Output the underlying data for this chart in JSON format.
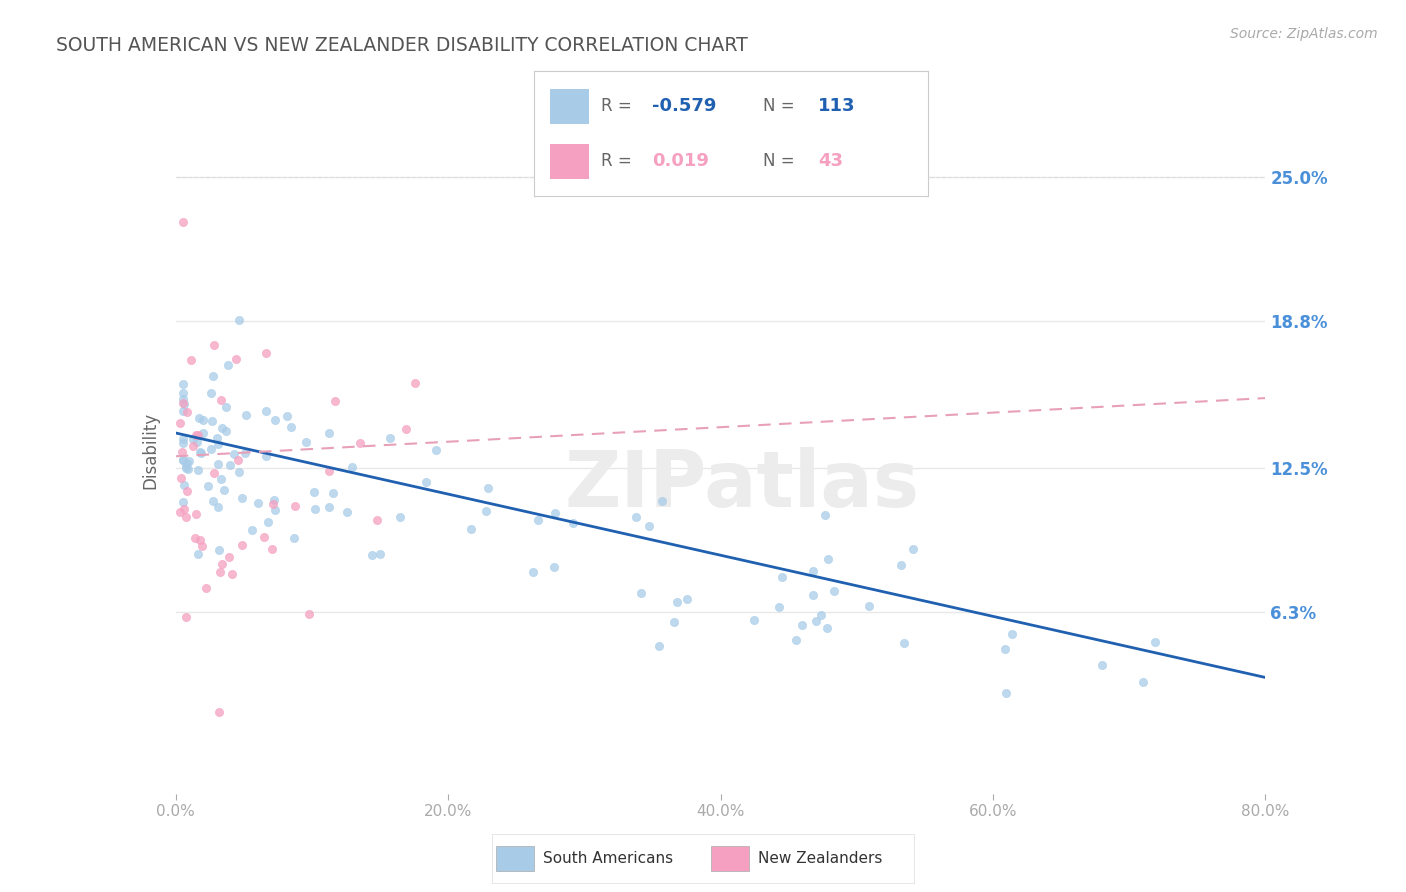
{
  "title": "SOUTH AMERICAN VS NEW ZEALANDER DISABILITY CORRELATION CHART",
  "source_text": "Source: ZipAtlas.com",
  "watermark": "ZIPatlas",
  "ylabel": "Disability",
  "x_min": 0.0,
  "x_max": 80.0,
  "y_min": 0.0,
  "y_max": 27.0,
  "y_ticks": [
    6.3,
    12.5,
    18.8,
    25.0
  ],
  "y_tick_labels": [
    "6.3%",
    "12.5%",
    "18.8%",
    "25.0%"
  ],
  "x_tick_labels": [
    "0.0%",
    "20.0%",
    "40.0%",
    "60.0%",
    "80.0%"
  ],
  "x_ticks": [
    0,
    20,
    40,
    60,
    80
  ],
  "blue_R": -0.579,
  "blue_N": 113,
  "pink_R": 0.019,
  "pink_N": 43,
  "blue_color": "#a8cce8",
  "pink_color": "#f5a0c0",
  "blue_line_color": "#2060b0",
  "pink_line_color": "#e8a0b8",
  "legend_blue_label": "South Americans",
  "legend_pink_label": "New Zealanders",
  "background_color": "#ffffff",
  "grid_color": "#e8e8e8",
  "title_color": "#555555",
  "right_axis_label_color": "#4a90d9",
  "blue_line_start_x": 0,
  "blue_line_start_y": 14.0,
  "blue_line_end_x": 80,
  "blue_line_end_y": 3.5,
  "pink_line_start_x": 0,
  "pink_line_start_y": 13.0,
  "pink_line_end_x": 80,
  "pink_line_end_y": 15.5
}
